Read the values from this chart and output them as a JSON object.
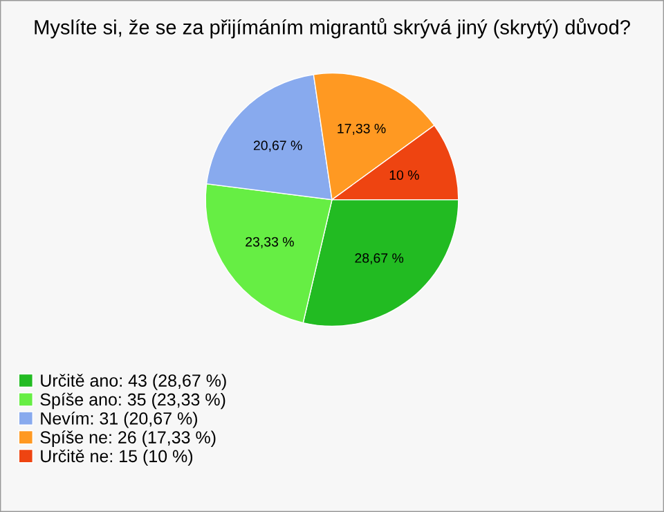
{
  "chart_data": {
    "type": "pie",
    "title": "Myslíte si, že se za přijímáním migrantů skrývá jiný (skrytý) důvod?",
    "categories": [
      "Určitě ano: 43 (28,67 %)",
      "Spíše ano: 35 (23,33 %)",
      "Nevím: 31 (20,67 %)",
      "Spíše ne: 26 (17,33 %)",
      "Určitě ne: 15 (10 %)"
    ],
    "values": [
      28.67,
      23.33,
      20.67,
      17.33,
      10
    ],
    "value_labels": [
      "28,67 %",
      "23,33 %",
      "20,67 %",
      "17,33 %",
      "10 %"
    ],
    "colors": [
      "#22bb22",
      "#66ee44",
      "#88aaee",
      "#ff9922",
      "#ee4411"
    ],
    "legend": "bottom left"
  }
}
